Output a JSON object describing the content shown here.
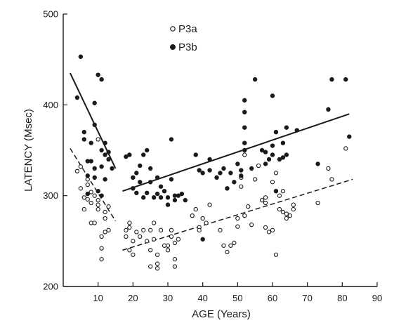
{
  "chart_data": {
    "type": "scatter",
    "xlabel": "AGE (Years)",
    "ylabel": "LATENCY (Msec)",
    "xlim": [
      0,
      90
    ],
    "ylim": [
      200,
      500
    ],
    "x_ticks": [
      10,
      20,
      30,
      40,
      50,
      60,
      70,
      80,
      90
    ],
    "y_ticks": [
      200,
      300,
      400,
      500
    ],
    "grid": false,
    "legend_position": "top-center",
    "series": [
      {
        "name": "P3a",
        "marker": "open-circle",
        "line_style": "dashed",
        "color": "#1a1a1a",
        "points": [
          [
            4,
            327
          ],
          [
            5,
            332
          ],
          [
            5,
            308
          ],
          [
            6,
            298
          ],
          [
            6,
            285
          ],
          [
            7,
            318
          ],
          [
            7,
            312
          ],
          [
            7,
            296
          ],
          [
            8,
            304
          ],
          [
            8,
            270
          ],
          [
            8,
            292
          ],
          [
            9,
            300
          ],
          [
            9,
            270
          ],
          [
            10,
            295
          ],
          [
            10,
            290
          ],
          [
            10,
            285
          ],
          [
            10,
            362
          ],
          [
            11,
            255
          ],
          [
            11,
            242
          ],
          [
            11,
            230
          ],
          [
            12,
            260
          ],
          [
            12,
            275
          ],
          [
            12,
            282
          ],
          [
            13,
            262
          ],
          [
            13,
            288
          ],
          [
            18,
            262
          ],
          [
            18,
            255
          ],
          [
            19,
            265
          ],
          [
            19,
            270
          ],
          [
            19,
            240
          ],
          [
            20,
            250
          ],
          [
            20,
            235
          ],
          [
            21,
            260
          ],
          [
            22,
            255
          ],
          [
            23,
            262
          ],
          [
            24,
            250
          ],
          [
            25,
            262
          ],
          [
            25,
            240
          ],
          [
            25,
            222
          ],
          [
            26,
            270
          ],
          [
            26,
            252
          ],
          [
            27,
            235
          ],
          [
            27,
            225
          ],
          [
            27,
            220
          ],
          [
            28,
            262
          ],
          [
            29,
            245
          ],
          [
            30,
            245
          ],
          [
            30,
            240
          ],
          [
            31,
            262
          ],
          [
            31,
            255
          ],
          [
            32,
            248
          ],
          [
            32,
            230
          ],
          [
            32,
            222
          ],
          [
            33,
            252
          ],
          [
            37,
            278
          ],
          [
            38,
            285
          ],
          [
            39,
            265
          ],
          [
            39,
            262
          ],
          [
            40,
            275
          ],
          [
            41,
            270
          ],
          [
            42,
            290
          ],
          [
            45,
            262
          ],
          [
            46,
            245
          ],
          [
            47,
            238
          ],
          [
            48,
            245
          ],
          [
            49,
            248
          ],
          [
            50,
            266
          ],
          [
            50,
            275
          ],
          [
            51,
            310
          ],
          [
            51,
            320
          ],
          [
            52,
            278
          ],
          [
            52,
            345
          ],
          [
            53,
            288
          ],
          [
            54,
            268
          ],
          [
            55,
            318
          ],
          [
            56,
            333
          ],
          [
            57,
            295
          ],
          [
            58,
            298
          ],
          [
            58,
            292
          ],
          [
            58,
            265
          ],
          [
            59,
            260
          ],
          [
            60,
            262
          ],
          [
            60,
            315
          ],
          [
            61,
            325
          ],
          [
            61,
            235
          ],
          [
            62,
            300
          ],
          [
            62,
            285
          ],
          [
            63,
            305
          ],
          [
            63,
            282
          ],
          [
            64,
            280
          ],
          [
            64,
            275
          ],
          [
            65,
            278
          ],
          [
            66,
            285
          ],
          [
            66,
            290
          ],
          [
            73,
            292
          ],
          [
            76,
            330
          ],
          [
            77,
            318
          ],
          [
            81,
            352
          ]
        ],
        "fit_line": [
          [
            2,
            352
          ],
          [
            15,
            272
          ],
          [
            17,
            240
          ],
          [
            83,
            318
          ]
        ]
      },
      {
        "name": "P3b",
        "marker": "filled-circle",
        "line_style": "solid",
        "color": "#1a1a1a",
        "points": [
          [
            4,
            408
          ],
          [
            5,
            453
          ],
          [
            6,
            370
          ],
          [
            6,
            362
          ],
          [
            7,
            338
          ],
          [
            7,
            322
          ],
          [
            7,
            302
          ],
          [
            8,
            358
          ],
          [
            8,
            338
          ],
          [
            9,
            378
          ],
          [
            9,
            402
          ],
          [
            9,
            330
          ],
          [
            9,
            320
          ],
          [
            10,
            433
          ],
          [
            10,
            305
          ],
          [
            11,
            428
          ],
          [
            11,
            350
          ],
          [
            11,
            332
          ],
          [
            11,
            300
          ],
          [
            12,
            318
          ],
          [
            12,
            345
          ],
          [
            12,
            358
          ],
          [
            13,
            348
          ],
          [
            13,
            340
          ],
          [
            14,
            330
          ],
          [
            18,
            343
          ],
          [
            19,
            345
          ],
          [
            20,
            320
          ],
          [
            20,
            308
          ],
          [
            21,
            325
          ],
          [
            21,
            303
          ],
          [
            22,
            333
          ],
          [
            22,
            315
          ],
          [
            23,
            345
          ],
          [
            23,
            298
          ],
          [
            24,
            350
          ],
          [
            24,
            303
          ],
          [
            25,
            330
          ],
          [
            25,
            315
          ],
          [
            26,
            298
          ],
          [
            27,
            320
          ],
          [
            27,
            302
          ],
          [
            28,
            310
          ],
          [
            28,
            298
          ],
          [
            29,
            305
          ],
          [
            30,
            298
          ],
          [
            30,
            290
          ],
          [
            31,
            362
          ],
          [
            31,
            318
          ],
          [
            32,
            300
          ],
          [
            32,
            295
          ],
          [
            33,
            300
          ],
          [
            34,
            302
          ],
          [
            35,
            295
          ],
          [
            38,
            345
          ],
          [
            39,
            328
          ],
          [
            40,
            325
          ],
          [
            40,
            252
          ],
          [
            42,
            340
          ],
          [
            42,
            328
          ],
          [
            44,
            320
          ],
          [
            45,
            325
          ],
          [
            46,
            330
          ],
          [
            47,
            308
          ],
          [
            48,
            325
          ],
          [
            49,
            315
          ],
          [
            50,
            335
          ],
          [
            51,
            328
          ],
          [
            51,
            322
          ],
          [
            52,
            350
          ],
          [
            52,
            358
          ],
          [
            52,
            375
          ],
          [
            52,
            392
          ],
          [
            52,
            405
          ],
          [
            54,
            330
          ],
          [
            55,
            428
          ],
          [
            57,
            350
          ],
          [
            58,
            348
          ],
          [
            58,
            335
          ],
          [
            59,
            340
          ],
          [
            60,
            355
          ],
          [
            60,
            345
          ],
          [
            60,
            410
          ],
          [
            61,
            370
          ],
          [
            61,
            305
          ],
          [
            62,
            340
          ],
          [
            63,
            358
          ],
          [
            63,
            342
          ],
          [
            64,
            375
          ],
          [
            64,
            345
          ],
          [
            67,
            372
          ],
          [
            73,
            335
          ],
          [
            76,
            395
          ],
          [
            77,
            428
          ],
          [
            81,
            428
          ],
          [
            82,
            365
          ]
        ],
        "fit_line": [
          [
            2,
            435
          ],
          [
            15,
            330
          ],
          [
            17,
            305
          ],
          [
            82,
            390
          ]
        ]
      }
    ]
  }
}
